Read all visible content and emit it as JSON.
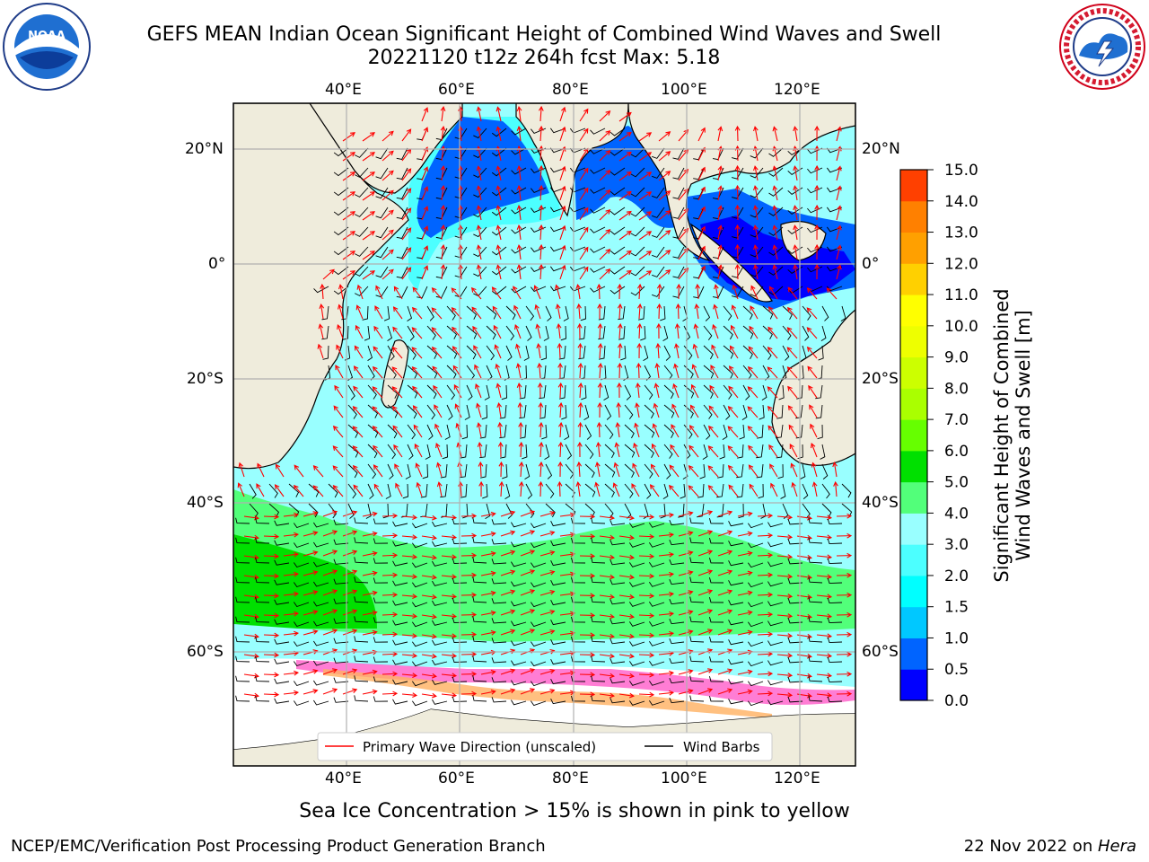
{
  "header": {
    "title_line1": "GEFS MEAN Indian Ocean Significant Height of Combined Wind Waves and Swell",
    "title_line2": "20221120 t12z 264h fcst   Max: 5.18"
  },
  "logos": {
    "left_name": "noaa-logo",
    "left_text": "NOAA",
    "right_name": "nws-logo",
    "right_text": "NATIONAL WEATHER SERVICE"
  },
  "map": {
    "lon_ticks": [
      "40°E",
      "60°E",
      "80°E",
      "100°E",
      "120°E"
    ],
    "lat_ticks": [
      "20°N",
      "0°",
      "20°S",
      "40°S",
      "60°S"
    ],
    "land_color": "#efecdc",
    "legend": {
      "wave_label": "Primary Wave Direction (unscaled)",
      "wind_label": "Wind Barbs",
      "wave_color": "#ff0000",
      "wind_color": "#000000"
    }
  },
  "colorbar": {
    "label_line1": "Significant Height of Combined",
    "label_line2": "Wind Waves and Swell [m]",
    "ticks": [
      "0.0",
      "0.5",
      "1.0",
      "1.5",
      "2.0",
      "3.0",
      "4.0",
      "5.0",
      "6.0",
      "7.0",
      "8.0",
      "9.0",
      "10.0",
      "11.0",
      "12.0",
      "13.0",
      "14.0",
      "15.0"
    ],
    "colors": [
      "#0000ff",
      "#0064ff",
      "#00c8ff",
      "#00ffff",
      "#4cffff",
      "#99ffff",
      "#52ff7a",
      "#00e000",
      "#66ff00",
      "#aaff00",
      "#ccff00",
      "#eeff00",
      "#ffff00",
      "#ffd000",
      "#ffa000",
      "#ff8000",
      "#ff4000",
      "#ff0000"
    ]
  },
  "notes": {
    "sea_ice": "Sea Ice Concentration > 15% is shown in pink to yellow"
  },
  "footer": {
    "left": "NCEP/EMC/Verification Post Processing Product Generation Branch",
    "date": "22 Nov 2022 on ",
    "host": "Hera"
  }
}
